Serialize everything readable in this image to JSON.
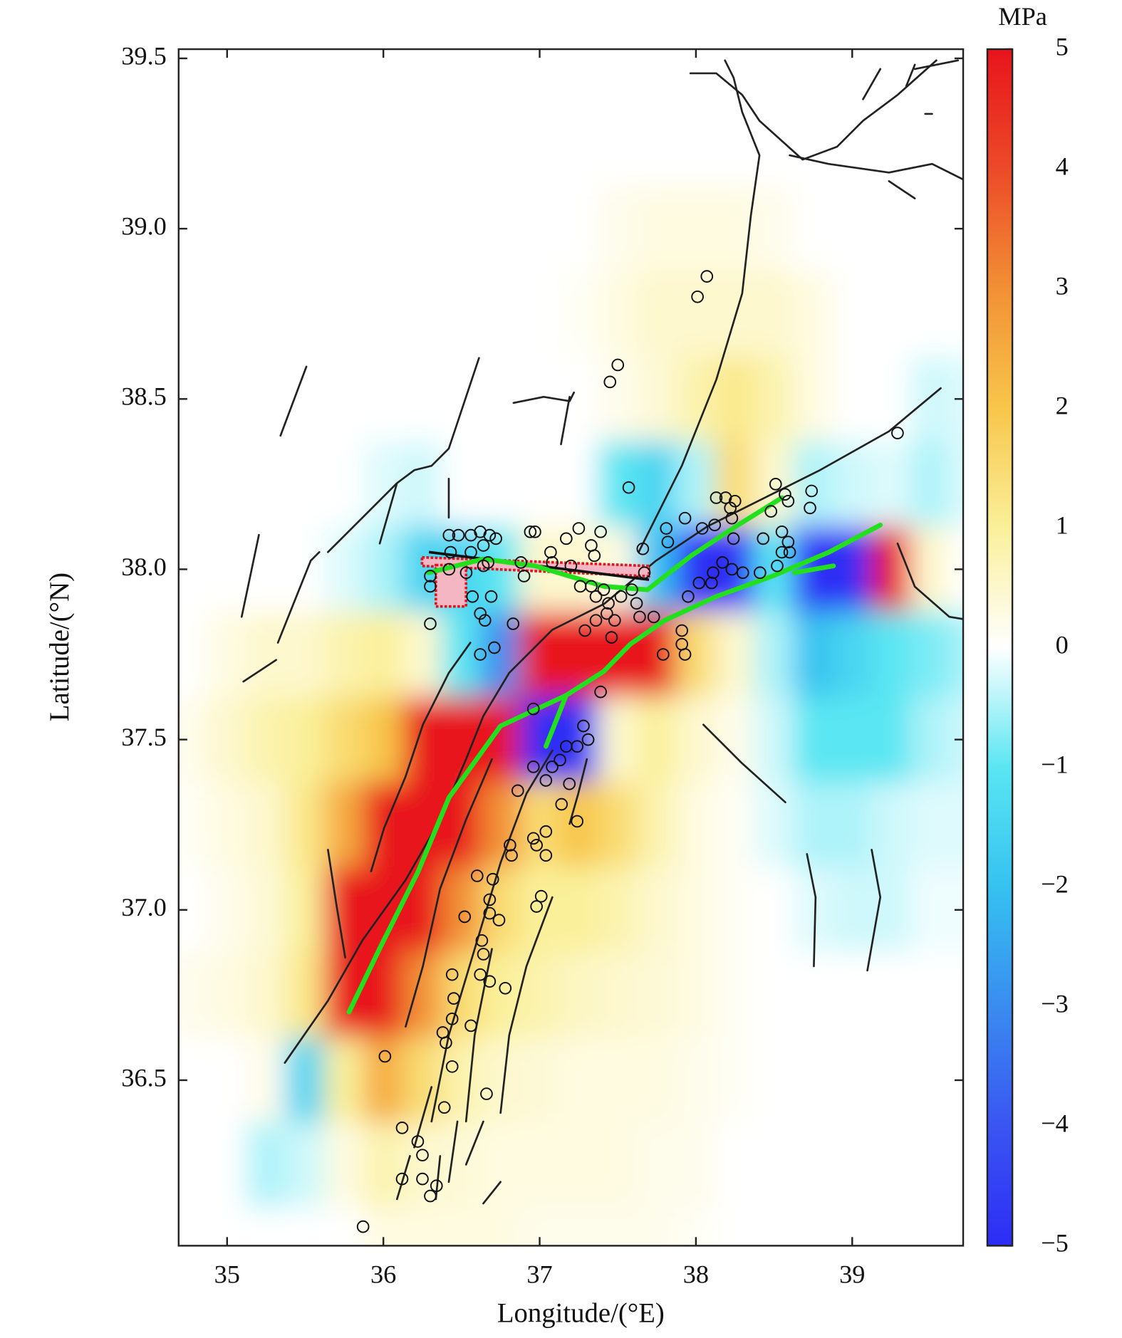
{
  "chart_data": {
    "type": "heatmap",
    "xlabel": "Longitude/(°E)",
    "ylabel": "Latitude/(°N)",
    "colorbar_label": "MPa",
    "xlim": [
      34.69,
      39.71
    ],
    "ylim": [
      36.014,
      39.527
    ],
    "xticks": [
      35,
      36,
      37,
      38,
      39
    ],
    "yticks": [
      36.5,
      {
        "value": 37,
        "label": "37.0"
      },
      37.5,
      {
        "value": 38,
        "label": "38.0"
      },
      38.5,
      {
        "value": 39,
        "label": "39.0"
      },
      39.5
    ],
    "clim": [
      -5,
      5
    ],
    "cticks": [
      {
        "value": -5,
        "label": "−5"
      },
      {
        "value": -4,
        "label": "−4"
      },
      {
        "value": -3,
        "label": "−3"
      },
      {
        "value": -2,
        "label": "−2"
      },
      {
        "value": -1,
        "label": "−1"
      },
      0,
      1,
      2,
      3,
      4,
      5
    ],
    "colormap": [
      "#2d2df5",
      "#3a55f2",
      "#3a8cf0",
      "#35c2f0",
      "#5ae6f2",
      "#ffffff",
      "#faf09a",
      "#f8c64a",
      "#f29035",
      "#ec4a28",
      "#e8141c"
    ],
    "field": {
      "lon": [
        34.75,
        35,
        35.25,
        35.5,
        35.75,
        36,
        36.25,
        36.5,
        36.75,
        37,
        37.25,
        37.5,
        37.75,
        38,
        38.25,
        38.5,
        38.75,
        39,
        39.25,
        39.5,
        39.75
      ],
      "lat": [
        39.5,
        39.25,
        39,
        38.75,
        38.5,
        38.25,
        38,
        37.75,
        37.5,
        37.25,
        37,
        36.75,
        36.5,
        36.25,
        36
      ],
      "values": [
        [
          0,
          0,
          0,
          0,
          0,
          0,
          0,
          0,
          0,
          0,
          0,
          0,
          0,
          0,
          0,
          0,
          0,
          0,
          0,
          0,
          0
        ],
        [
          0,
          0,
          0,
          0,
          0,
          0,
          0,
          0,
          0,
          0,
          0,
          0,
          0,
          0,
          0,
          0,
          0,
          0,
          0,
          0,
          0
        ],
        [
          0,
          0,
          0,
          0,
          0,
          0,
          0,
          0,
          0,
          0,
          0,
          0.2,
          0.3,
          0.3,
          0.3,
          0.2,
          0,
          0,
          0,
          0,
          0
        ],
        [
          0,
          0,
          0,
          0,
          0,
          0,
          0,
          0,
          0,
          0,
          0.1,
          0.3,
          0.5,
          0.5,
          0.5,
          0.5,
          0.3,
          0,
          0,
          0,
          0
        ],
        [
          0,
          0,
          0,
          0,
          0,
          0,
          0,
          0,
          0,
          0,
          0,
          0.2,
          0.4,
          0.8,
          1.2,
          0.8,
          0.3,
          0,
          0,
          -0.3,
          -0.2
        ],
        [
          0,
          0,
          0,
          0,
          0,
          -0.2,
          -0.3,
          0,
          0,
          0,
          0,
          -1,
          -1.5,
          -0.5,
          1.5,
          0.5,
          -0.5,
          -0.3,
          -0.2,
          -0.5,
          -0.2
        ],
        [
          0,
          0,
          0,
          0,
          -0.2,
          -0.5,
          -1.5,
          -1.5,
          -1,
          0.5,
          0.5,
          0.3,
          -2,
          -5,
          -5,
          -1,
          -5,
          -5,
          5,
          0.5,
          0
        ],
        [
          0,
          0.3,
          0.5,
          0.5,
          0.8,
          1,
          0.5,
          -1,
          -3,
          5,
          5,
          5,
          5,
          1.5,
          0.5,
          -0.5,
          -2,
          -1.5,
          -1,
          -0.8,
          -0.5
        ],
        [
          0.2,
          0.5,
          0.8,
          1,
          1.5,
          2,
          5,
          5,
          5,
          -5,
          -5,
          0.5,
          1,
          0.5,
          0.2,
          -0.3,
          -1,
          -1,
          -1,
          -0.5,
          -0.3
        ],
        [
          0.1,
          0.3,
          0.5,
          1.2,
          2.5,
          5,
          5,
          5,
          3,
          1.5,
          2,
          1.5,
          0.8,
          0.3,
          0.1,
          -0.2,
          -0.5,
          -0.5,
          -0.3,
          -0.2,
          -0.2
        ],
        [
          0,
          0.2,
          0.4,
          1,
          5,
          5,
          5,
          3,
          1.5,
          1,
          1,
          0.8,
          0.5,
          0.3,
          0.1,
          0,
          -0.2,
          -0.3,
          -0.3,
          -0.1,
          -0.1
        ],
        [
          0.2,
          0.3,
          0.5,
          1.2,
          5,
          5,
          3,
          1.5,
          1,
          0.8,
          0.6,
          0.5,
          0.4,
          0.3,
          0.1,
          0,
          0,
          0,
          0,
          0,
          0
        ],
        [
          0,
          0,
          0.2,
          -1.5,
          1,
          2.5,
          1.5,
          0.8,
          0.5,
          0.4,
          0.3,
          0.3,
          0.3,
          0.2,
          0.1,
          0,
          0,
          0,
          0,
          0,
          0
        ],
        [
          0,
          0,
          -0.5,
          -0.3,
          0.3,
          0.8,
          0.5,
          0.4,
          0.3,
          0.3,
          0.3,
          0.3,
          0.2,
          0.2,
          0,
          0,
          0,
          0,
          0,
          0,
          0
        ],
        [
          0,
          0,
          0,
          0,
          0,
          0.3,
          0.3,
          0.3,
          0.3,
          0.2,
          0.2,
          0.2,
          0.2,
          0.1,
          0,
          0,
          0,
          0,
          0,
          0,
          0
        ]
      ]
    },
    "ruptures": {
      "color": "#22e01e",
      "lines": [
        {
          "lon": [
            35.78,
            35.98,
            36.22,
            36.42,
            36.75,
            37.17,
            37.41,
            37.58,
            37.8,
            38.13,
            38.49,
            38.85,
            39.18
          ],
          "lat": [
            36.7,
            36.89,
            37.11,
            37.33,
            37.54,
            37.63,
            37.7,
            37.78,
            37.85,
            37.92,
            37.98,
            38.05,
            38.13
          ]
        },
        {
          "lon": [
            37.17,
            37.04
          ],
          "lat": [
            37.63,
            37.48
          ]
        },
        {
          "lon": [
            38.63,
            38.88
          ],
          "lat": [
            37.99,
            38.01
          ]
        },
        {
          "lon": [
            36.29,
            36.64,
            36.97,
            37.41,
            37.69
          ],
          "lat": [
            37.99,
            38.03,
            38.01,
            37.95,
            37.94
          ]
        },
        {
          "lon": [
            37.69,
            37.97,
            38.27,
            38.55
          ],
          "lat": [
            37.94,
            38.04,
            38.13,
            38.21
          ]
        }
      ]
    },
    "aftershocks": {
      "color": "#111111",
      "lon": [
        38.07,
        38.01,
        37.5,
        37.45,
        39.29,
        37.57,
        38.51,
        38.57,
        38.13,
        38.19,
        38.25,
        38.22,
        38.59,
        38.74,
        38.48,
        38.73,
        38.23,
        37.93,
        38.04,
        38.12,
        37.81,
        38.55,
        38.43,
        38.59,
        38.24,
        38.55,
        38.6,
        38.23,
        38.17,
        38.11,
        38.3,
        38.41,
        38.52,
        38.1,
        38.02,
        37.95,
        37.82,
        37.66,
        37.67,
        37.59,
        37.52,
        37.39,
        37.25,
        37.33,
        37.35,
        37.17,
        37.07,
        36.97,
        36.94,
        36.88,
        36.9,
        37.08,
        37.2,
        37.33,
        37.26,
        37.41,
        37.44,
        37.36,
        37.43,
        37.46,
        37.48,
        37.62,
        37.64,
        37.73,
        37.79,
        37.91,
        37.93,
        37.91,
        37.29,
        37.36,
        37.39,
        37.31,
        37.24,
        37.17,
        37.13,
        37.08,
        37.04,
        36.96,
        36.96,
        37.28,
        37.19,
        37.14,
        37.24,
        37.04,
        36.96,
        36.98,
        37.04,
        36.86,
        36.81,
        36.82,
        37.01,
        36.98,
        36.7,
        36.6,
        36.68,
        36.68,
        36.74,
        36.63,
        36.64,
        36.52,
        36.62,
        36.68,
        36.78,
        36.44,
        36.45,
        36.56,
        36.44,
        36.38,
        36.4,
        36.44,
        36.01,
        36.66,
        36.39,
        36.12,
        36.22,
        36.25,
        36.12,
        36.25,
        36.3,
        36.34,
        35.87,
        36.42,
        36.48,
        36.56,
        36.62,
        36.68,
        36.72,
        36.43,
        36.56,
        36.64,
        36.67,
        36.3,
        36.3,
        36.42,
        36.53,
        36.64,
        36.57,
        36.69,
        36.62,
        36.65,
        36.71,
        36.62,
        36.3,
        36.83
      ],
      "lat": [
        38.86,
        38.8,
        38.6,
        38.55,
        38.4,
        38.24,
        38.25,
        38.22,
        38.21,
        38.21,
        38.2,
        38.18,
        38.2,
        38.23,
        38.17,
        38.18,
        38.15,
        38.15,
        38.12,
        38.13,
        38.12,
        38.11,
        38.09,
        38.08,
        38.09,
        38.05,
        38.05,
        38.0,
        38.02,
        37.99,
        37.99,
        37.99,
        38.01,
        37.96,
        37.96,
        37.92,
        38.08,
        38.06,
        37.99,
        37.94,
        37.92,
        38.11,
        38.12,
        38.07,
        38.04,
        38.09,
        38.05,
        38.11,
        38.11,
        38.02,
        37.98,
        38.02,
        38.01,
        37.95,
        37.95,
        37.94,
        37.9,
        37.92,
        37.87,
        37.8,
        37.85,
        37.9,
        37.86,
        37.86,
        37.75,
        37.78,
        37.75,
        37.82,
        37.82,
        37.85,
        37.64,
        37.5,
        37.48,
        37.48,
        37.44,
        37.42,
        37.38,
        37.42,
        37.59,
        37.54,
        37.37,
        37.31,
        37.26,
        37.23,
        37.21,
        37.19,
        37.16,
        37.35,
        37.19,
        37.16,
        37.04,
        37.01,
        37.09,
        37.1,
        37.03,
        36.99,
        36.97,
        36.91,
        36.87,
        36.98,
        36.81,
        36.79,
        36.77,
        36.81,
        36.74,
        36.66,
        36.68,
        36.64,
        36.61,
        36.54,
        36.57,
        36.46,
        36.42,
        36.36,
        36.32,
        36.28,
        36.21,
        36.21,
        36.16,
        36.19,
        36.07,
        38.1,
        38.1,
        38.1,
        38.11,
        38.1,
        38.09,
        38.05,
        38.05,
        38.07,
        38.02,
        37.98,
        37.95,
        38.0,
        37.99,
        38.01,
        37.92,
        37.92,
        37.87,
        37.85,
        37.77,
        37.75,
        37.84,
        37.84
      ]
    }
  }
}
